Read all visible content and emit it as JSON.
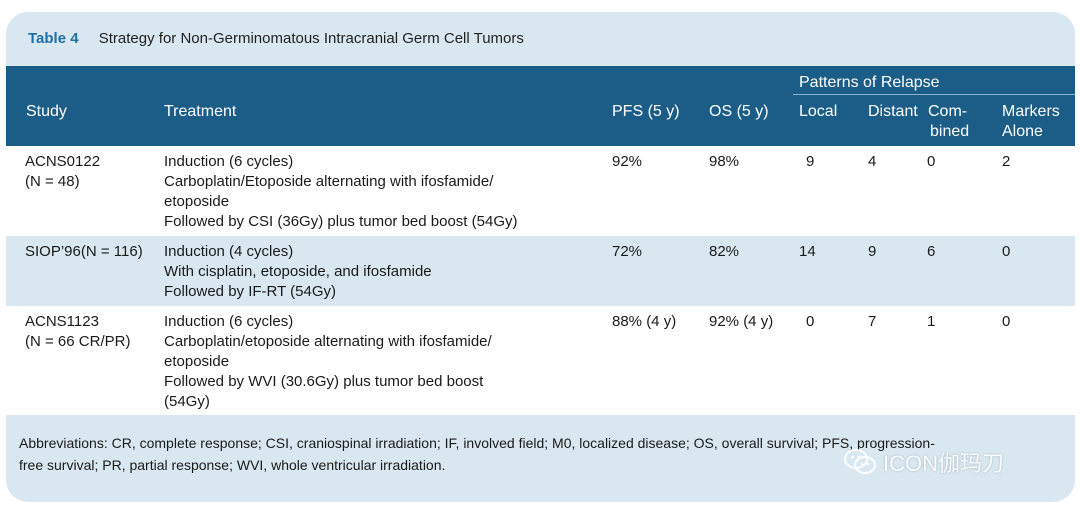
{
  "table": {
    "label": "Table 4",
    "title": "Strategy for Non-Germinomatous Intracranial Germ Cell Tumors",
    "header": {
      "study": "Study",
      "treatment": "Treatment",
      "pfs": "PFS (5 y)",
      "os": "OS (5 y)",
      "patterns_of_relapse": "Patterns of Relapse",
      "local": "Local",
      "distant": "Distant",
      "combined_line1": "Com-",
      "combined_line2": "bined",
      "markers_line1": "Markers",
      "markers_line2": "Alone"
    },
    "rows": [
      {
        "study": [
          "ACNS0122",
          "(N = 48)"
        ],
        "treatment": [
          "Induction (6 cycles)",
          "Carboplatin/Etoposide alternating with ifosfamide/",
          "etoposide",
          "Followed by CSI (36Gy) plus tumor bed boost (54Gy)"
        ],
        "pfs": "92%",
        "os": "98%",
        "local": "9",
        "distant": "4",
        "combined": "0",
        "markers": "2"
      },
      {
        "study": [
          "SIOP’96(N = 116)"
        ],
        "treatment": [
          "Induction (4 cycles)",
          "With cisplatin, etoposide, and ifosfamide",
          "Followed by IF-RT (54Gy)"
        ],
        "pfs": "72%",
        "os": "82%",
        "local": "14",
        "distant": "9",
        "combined": "6",
        "markers": "0"
      },
      {
        "study": [
          "ACNS1123",
          "(N = 66 CR/PR)"
        ],
        "treatment": [
          "Induction (6 cycles)",
          "Carboplatin/etoposide alternating with ifosfamide/",
          "etoposide",
          "Followed by WVI (30.6Gy) plus tumor bed boost",
          "(54Gy)"
        ],
        "pfs": "88% (4 y)",
        "os": "92% (4 y)",
        "local": "0",
        "distant": "7",
        "combined": "1",
        "markers": "0"
      }
    ],
    "footnote_line1": "Abbreviations: CR, complete response; CSI, craniospinal irradiation; IF, involved field; M0, localized disease; OS, overall survival; PFS, progression-",
    "footnote_line2": "free survival; PR, partial response; WVI, whole ventricular irradiation."
  },
  "watermark": {
    "text": "ICON伽玛刀",
    "icon": "wechat-icon"
  }
}
